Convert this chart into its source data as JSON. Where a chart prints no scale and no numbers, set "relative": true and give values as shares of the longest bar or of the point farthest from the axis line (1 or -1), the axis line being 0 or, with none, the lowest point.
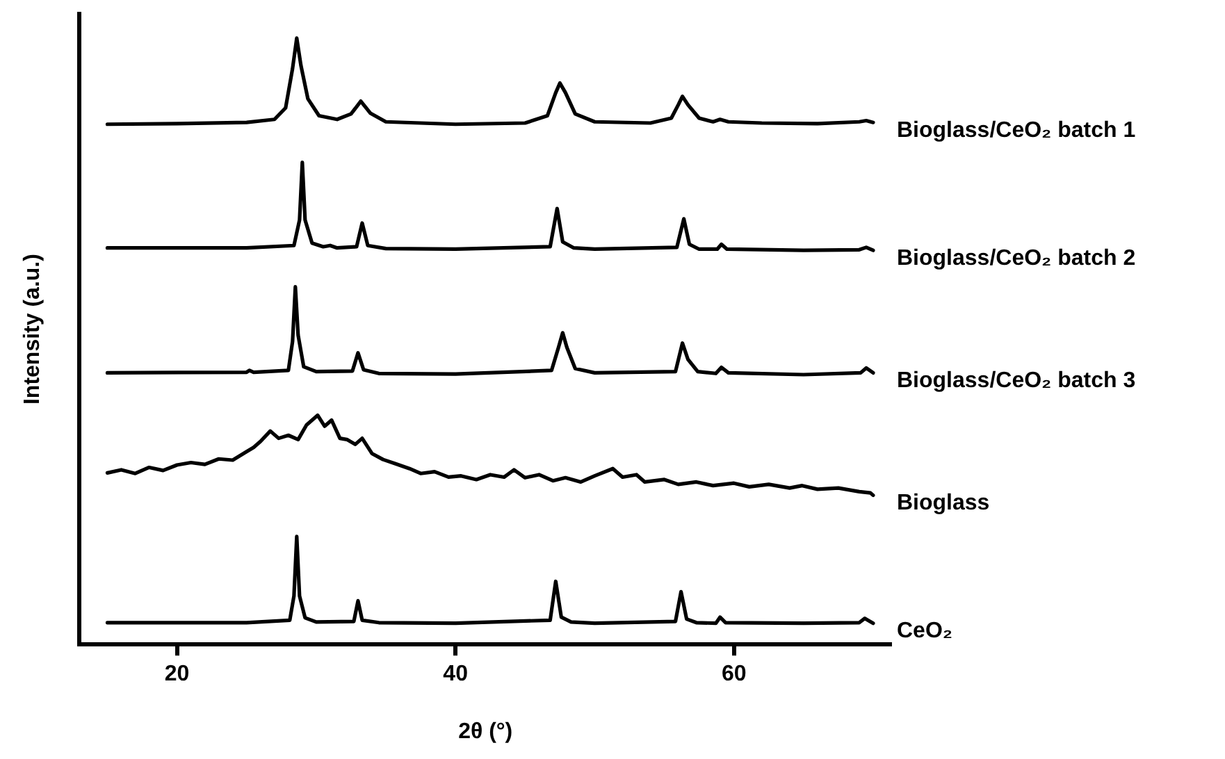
{
  "chart_data": {
    "type": "line",
    "xlabel": "2θ (°)",
    "ylabel": "Intensity (a.u.)",
    "relative": true,
    "xlim": [
      13,
      71.3
    ],
    "xticks": [
      20,
      40,
      60
    ],
    "grid": false,
    "legend": false,
    "marker": "none",
    "line_style": "solid",
    "tick_labels": "x",
    "series": [
      {
        "name": "Bioglass/CeO₂ batch 1",
        "color": "#000000",
        "x": [
          15,
          20,
          25,
          27,
          27.8,
          28.3,
          28.6,
          28.9,
          29.4,
          30.2,
          31.5,
          32.5,
          33.2,
          33.9,
          35,
          40,
          45,
          46.6,
          47.2,
          47.5,
          47.9,
          48.6,
          50,
          54,
          55.5,
          56.0,
          56.3,
          56.7,
          57.5,
          58.5,
          59.0,
          59.6,
          62,
          66,
          69,
          69.5,
          70
        ],
        "values": [
          0.858,
          0.859,
          0.861,
          0.866,
          0.885,
          0.95,
          1.0,
          0.955,
          0.9,
          0.872,
          0.866,
          0.875,
          0.896,
          0.876,
          0.862,
          0.858,
          0.86,
          0.872,
          0.91,
          0.926,
          0.91,
          0.875,
          0.862,
          0.86,
          0.868,
          0.89,
          0.904,
          0.89,
          0.868,
          0.862,
          0.866,
          0.862,
          0.86,
          0.859,
          0.862,
          0.864,
          0.861
        ]
      },
      {
        "name": "Bioglass/CeO₂ batch 2",
        "color": "#000000",
        "x": [
          15,
          25,
          28.4,
          28.8,
          29.0,
          29.2,
          29.7,
          30.5,
          31.0,
          31.5,
          32.9,
          33.3,
          33.7,
          35,
          40,
          46.8,
          47.3,
          47.7,
          48.5,
          50,
          55.9,
          56.4,
          56.8,
          57.5,
          58.8,
          59.1,
          59.5,
          65,
          69.0,
          69.5,
          70
        ],
        "values": [
          0.654,
          0.654,
          0.658,
          0.7,
          0.795,
          0.7,
          0.662,
          0.656,
          0.658,
          0.654,
          0.656,
          0.695,
          0.658,
          0.653,
          0.652,
          0.656,
          0.719,
          0.664,
          0.654,
          0.652,
          0.655,
          0.702,
          0.66,
          0.652,
          0.652,
          0.66,
          0.652,
          0.65,
          0.651,
          0.655,
          0.65
        ]
      },
      {
        "name": "Bioglass/CeO₂ batch 3",
        "color": "#000000",
        "x": [
          15,
          25,
          25.2,
          25.5,
          28.0,
          28.3,
          28.5,
          28.7,
          29.1,
          30,
          32.6,
          33.0,
          33.4,
          34.5,
          40,
          46.9,
          47.4,
          47.7,
          48.0,
          48.6,
          50,
          55.8,
          56.3,
          56.7,
          57.4,
          58.7,
          59.1,
          59.6,
          65,
          69.1,
          69.5,
          70
        ],
        "values": [
          0.448,
          0.449,
          0.452,
          0.449,
          0.452,
          0.5,
          0.59,
          0.51,
          0.458,
          0.45,
          0.451,
          0.481,
          0.453,
          0.447,
          0.446,
          0.452,
          0.49,
          0.514,
          0.49,
          0.455,
          0.448,
          0.45,
          0.497,
          0.47,
          0.45,
          0.447,
          0.457,
          0.448,
          0.445,
          0.448,
          0.456,
          0.448
        ]
      },
      {
        "name": "Bioglass",
        "color": "#000000",
        "x": [
          15,
          16,
          17,
          18,
          19,
          20,
          21,
          22,
          23,
          24,
          25,
          25.5,
          26,
          26.7,
          27.3,
          28,
          28.7,
          29.3,
          30.1,
          30.6,
          31.1,
          31.7,
          32.2,
          32.8,
          33.3,
          34,
          34.8,
          35.7,
          36.7,
          37.5,
          38.5,
          39.5,
          40.4,
          41.5,
          42.5,
          43.5,
          44.2,
          45,
          46,
          47,
          47.9,
          49,
          50,
          51.3,
          52,
          53,
          53.6,
          55,
          56,
          57.3,
          58.5,
          60,
          61.1,
          62.5,
          64,
          64.9,
          66,
          67.5,
          69,
          69.8,
          70
        ],
        "values": [
          0.283,
          0.288,
          0.282,
          0.292,
          0.287,
          0.296,
          0.3,
          0.297,
          0.306,
          0.304,
          0.318,
          0.325,
          0.335,
          0.352,
          0.34,
          0.345,
          0.338,
          0.362,
          0.378,
          0.36,
          0.37,
          0.34,
          0.338,
          0.33,
          0.34,
          0.315,
          0.305,
          0.298,
          0.29,
          0.282,
          0.285,
          0.276,
          0.278,
          0.272,
          0.28,
          0.276,
          0.288,
          0.275,
          0.28,
          0.27,
          0.275,
          0.268,
          0.278,
          0.29,
          0.276,
          0.28,
          0.268,
          0.272,
          0.264,
          0.268,
          0.262,
          0.266,
          0.26,
          0.264,
          0.258,
          0.262,
          0.256,
          0.258,
          0.252,
          0.25,
          0.246
        ]
      },
      {
        "name": "CeO₂",
        "color": "#000000",
        "x": [
          15,
          25,
          28.1,
          28.4,
          28.6,
          28.8,
          29.2,
          30,
          32.7,
          33.0,
          33.3,
          34.5,
          40,
          46.8,
          47.2,
          47.6,
          48.3,
          50,
          55.8,
          56.2,
          56.6,
          57.3,
          58.7,
          59.0,
          59.4,
          65,
          69.0,
          69.4,
          70
        ],
        "values": [
          0.036,
          0.036,
          0.04,
          0.08,
          0.178,
          0.08,
          0.044,
          0.037,
          0.038,
          0.072,
          0.04,
          0.036,
          0.035,
          0.04,
          0.104,
          0.045,
          0.037,
          0.035,
          0.038,
          0.087,
          0.042,
          0.036,
          0.035,
          0.045,
          0.036,
          0.035,
          0.036,
          0.043,
          0.035
        ]
      }
    ]
  }
}
